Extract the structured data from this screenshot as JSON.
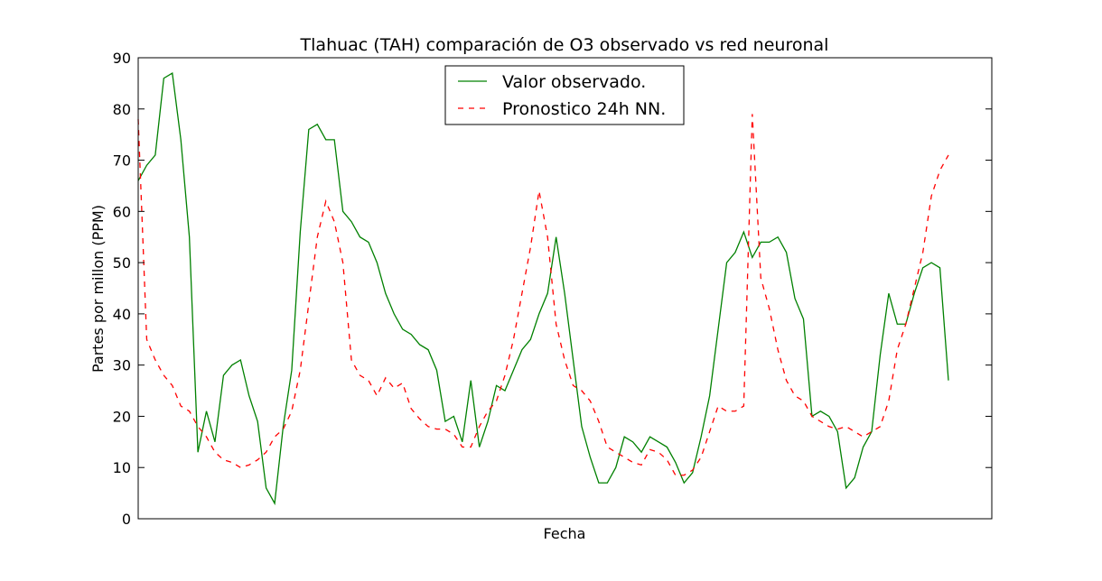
{
  "chart_data": {
    "type": "line",
    "title": "Tlahuac (TAH) comparación de O3 observado vs red neuronal",
    "xlabel": "Fecha",
    "ylabel": "Partes por millon (PPM)",
    "categories": [
      null,
      null,
      null,
      null,
      null,
      null,
      null,
      null,
      null,
      null,
      null,
      null,
      null,
      null,
      null,
      null,
      null,
      null,
      null,
      null,
      null,
      null,
      null,
      null,
      null,
      null,
      null,
      null,
      null,
      null,
      null,
      null,
      null,
      null,
      null,
      null,
      null,
      null,
      null,
      null,
      null,
      null,
      null,
      null,
      null,
      null,
      null,
      null,
      null,
      null,
      null,
      null,
      null,
      null,
      null,
      null,
      null,
      null,
      null,
      null,
      null,
      null,
      null,
      null,
      null,
      null,
      null,
      null,
      null,
      null,
      null,
      null,
      null,
      null,
      null,
      null,
      null,
      null,
      null,
      null,
      null,
      null,
      null,
      null,
      null,
      null,
      null,
      null,
      null,
      null,
      null,
      null,
      null,
      null,
      null,
      null
    ],
    "series": [
      {
        "name": "Valor observado.",
        "color": "#008000",
        "dash": "solid",
        "values": [
          66,
          69,
          71,
          86,
          87,
          74,
          55,
          13,
          21,
          15,
          28,
          30,
          31,
          24,
          19,
          6,
          3,
          18,
          29,
          56,
          76,
          77,
          74,
          74,
          60,
          58,
          55,
          54,
          50,
          44,
          40,
          37,
          36,
          34,
          33,
          29,
          19,
          20,
          15,
          27,
          14,
          19,
          26,
          25,
          29,
          33,
          35,
          40,
          44,
          55,
          44,
          31,
          18,
          12,
          7,
          7,
          10,
          16,
          15,
          13,
          16,
          15,
          14,
          11,
          7,
          9,
          16,
          24,
          37,
          50,
          52,
          56,
          51,
          54,
          54,
          55,
          52,
          43,
          39,
          20,
          21,
          20,
          17,
          6,
          8,
          14,
          17,
          32,
          44,
          38,
          38,
          44,
          49,
          50,
          49,
          27
        ]
      },
      {
        "name": "Pronostico 24h NN.",
        "color": "#ff0000",
        "dash": "dashed",
        "values": [
          78,
          35,
          31,
          28,
          26,
          22,
          21,
          18,
          16,
          13,
          11.5,
          11,
          10,
          10.5,
          11.5,
          13,
          16,
          17.5,
          21,
          29,
          42,
          55,
          62,
          58,
          50,
          31,
          28,
          27,
          24,
          27.5,
          25.5,
          26.5,
          21.5,
          19.5,
          18,
          17.5,
          17.5,
          16.5,
          14,
          14,
          18,
          21,
          23,
          28,
          35,
          44,
          53,
          64,
          55,
          38,
          31,
          26,
          25,
          23,
          19,
          14,
          13,
          12,
          11,
          10.5,
          13.5,
          13,
          11.5,
          8.5,
          8.5,
          9.5,
          12,
          17,
          22,
          21,
          21,
          22,
          79,
          47,
          41,
          33,
          27,
          24,
          23,
          20,
          19,
          18,
          17.5,
          18,
          17,
          16,
          17,
          18,
          23,
          33,
          38,
          45,
          52,
          63,
          68,
          71
        ]
      }
    ],
    "ylim": [
      0,
      90
    ],
    "yticks": [
      0,
      10,
      20,
      30,
      40,
      50,
      60,
      70,
      80,
      90
    ],
    "grid": false,
    "legend": "upper center"
  }
}
